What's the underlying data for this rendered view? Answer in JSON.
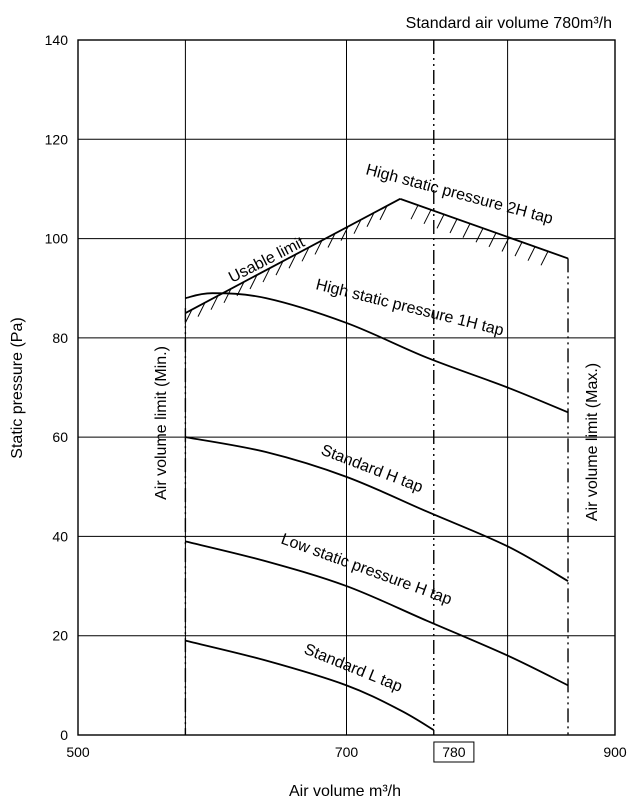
{
  "chart_data": {
    "type": "line",
    "title": "Standard air volume 780m³/h",
    "xlabel": "Air volume m³/h",
    "ylabel": "Static pressure (Pa)",
    "xlim": [
      500,
      900
    ],
    "ylim": [
      0,
      140
    ],
    "x_ticks": [
      500,
      700,
      780,
      900
    ],
    "y_ticks": [
      0,
      20,
      40,
      60,
      80,
      100,
      120,
      140
    ],
    "x_grid": [
      580,
      700,
      820
    ],
    "y_grid": [
      20,
      40,
      60,
      80,
      100,
      120
    ],
    "highlight_tick": 780,
    "reference_lines": [
      {
        "x": 765,
        "label": ""
      },
      {
        "x": 580,
        "label": "Air volume limit (Min.)"
      },
      {
        "x": 865,
        "label": "Air volume limit (Max.)"
      }
    ],
    "series": [
      {
        "name": "High static pressure 2H tap",
        "points": [
          [
            740,
            108
          ],
          [
            865,
            96
          ]
        ]
      },
      {
        "name": "Usable limit",
        "points": [
          [
            580,
            85
          ],
          [
            740,
            108
          ]
        ]
      },
      {
        "name": "High static pressure 1H tap",
        "points": [
          [
            580,
            88
          ],
          [
            600,
            89
          ],
          [
            640,
            88
          ],
          [
            700,
            83
          ],
          [
            760,
            76
          ],
          [
            820,
            70
          ],
          [
            865,
            65
          ]
        ]
      },
      {
        "name": "Standard H tap",
        "points": [
          [
            580,
            60
          ],
          [
            640,
            57
          ],
          [
            700,
            52
          ],
          [
            760,
            45
          ],
          [
            820,
            38
          ],
          [
            865,
            31
          ]
        ]
      },
      {
        "name": "Low static pressure H tap",
        "points": [
          [
            580,
            39
          ],
          [
            640,
            35
          ],
          [
            700,
            30
          ],
          [
            760,
            23
          ],
          [
            820,
            16
          ],
          [
            865,
            10
          ]
        ]
      },
      {
        "name": "Standard L tap",
        "points": [
          [
            580,
            19
          ],
          [
            640,
            15
          ],
          [
            700,
            10
          ],
          [
            740,
            5
          ],
          [
            765,
            1
          ]
        ]
      }
    ]
  }
}
